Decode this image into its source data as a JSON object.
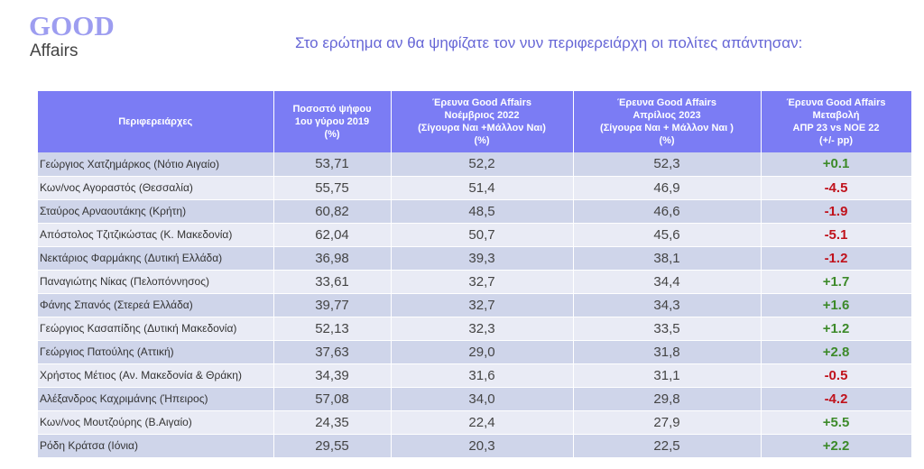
{
  "logo": {
    "line1": "GOOD",
    "line2": "Affairs"
  },
  "title": "Στο ερώτημα  αν θα ψηφίζατε τον νυν περιφερειάρχη οι πολίτες απάντησαν:",
  "headers": [
    [
      "Περιφερειάρχες"
    ],
    [
      "Ποσοστό ψήφου",
      "1ου γύρου 2019",
      "(%)"
    ],
    [
      "Έρευνα Good Affairs",
      "Νοέμβριος 2022",
      "(Σίγουρα Ναι +Μάλλον Ναι)",
      "(%)"
    ],
    [
      "Έρευνα Good Affairs",
      "Απρίλιος 2023",
      "(Σίγουρα Ναι + Μάλλον Ναι )",
      "(%)"
    ],
    [
      "Έρευνα Good Affairs",
      "Μεταβολή",
      "ΑΠΡ 23 vs ΝΟΕ 22",
      "(+/- pp)"
    ]
  ],
  "colors": {
    "positive": "#3d8a2a",
    "negative": "#c0121c",
    "header": "#7b7cf4"
  },
  "rows": [
    {
      "name": "Γεώργιος Χατζημάρκος (Νότιο Αιγαίο)",
      "r2019": "53,71",
      "nov22": "52,2",
      "apr23": "52,3",
      "change": "+0.1"
    },
    {
      "name": "Κων/νος Αγοραστός (Θεσσαλία)",
      "r2019": "55,75",
      "nov22": "51,4",
      "apr23": "46,9",
      "change": "-4.5"
    },
    {
      "name": "Σταύρος Αρναουτάκης (Κρήτη)",
      "r2019": "60,82",
      "nov22": "48,5",
      "apr23": "46,6",
      "change": "-1.9"
    },
    {
      "name": "Απόστολος Τζιτζικώστας (Κ. Μακεδονία)",
      "r2019": "62,04",
      "nov22": "50,7",
      "apr23": "45,6",
      "change": "-5.1"
    },
    {
      "name": "Νεκτάριος Φαρμάκης (Δυτική Ελλάδα)",
      "r2019": "36,98",
      "nov22": "39,3",
      "apr23": "38,1",
      "change": "-1.2"
    },
    {
      "name": "Παναγιώτης Νίκας (Πελοπόννησος)",
      "r2019": "33,61",
      "nov22": "32,7",
      "apr23": "34,4",
      "change": "+1.7"
    },
    {
      "name": "Φάνης Σπανός (Στερεά Ελλάδα)",
      "r2019": "39,77",
      "nov22": "32,7",
      "apr23": "34,3",
      "change": "+1.6"
    },
    {
      "name": "Γεώργιος Κασαπίδης (Δυτική Μακεδονία)",
      "r2019": "52,13",
      "nov22": "32,3",
      "apr23": "33,5",
      "change": "+1.2"
    },
    {
      "name": "Γεώργιος Πατούλης (Αττική)",
      "r2019": "37,63",
      "nov22": "29,0",
      "apr23": "31,8",
      "change": "+2.8"
    },
    {
      "name": "Χρήστος Μέτιος (Αν. Μακεδονία & Θράκη)",
      "r2019": "34,39",
      "nov22": "31,6",
      "apr23": "31,1",
      "change": "-0.5"
    },
    {
      "name": "Αλέξανδρος Καχριμάνης (Ήπειρος)",
      "r2019": "57,08",
      "nov22": "34,0",
      "apr23": "29,8",
      "change": "-4.2"
    },
    {
      "name": "Κων/νος Μουτζούρης (Β.Αιγαίο)",
      "r2019": "24,35",
      "nov22": "22,4",
      "apr23": "27,9",
      "change": "+5.5"
    },
    {
      "name": "Ρόδη Κράτσα (Ιόνια)",
      "r2019": "29,55",
      "nov22": "20,3",
      "apr23": "22,5",
      "change": "+2.2"
    }
  ]
}
